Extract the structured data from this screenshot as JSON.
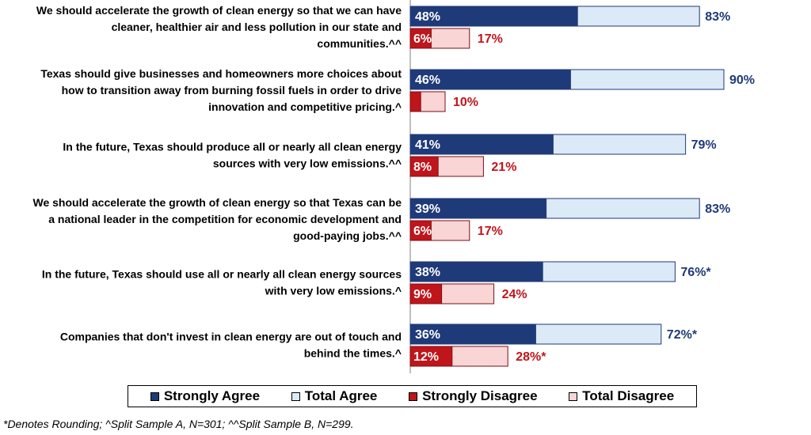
{
  "chart_data": {
    "type": "bar",
    "orientation": "horizontal",
    "xlim": [
      0,
      100
    ],
    "categories": [
      [
        "We should accelerate the growth of clean energy so that we can have",
        "cleaner, healthier air and less pollution in our state and",
        "communities.^^"
      ],
      [
        "Texas should give businesses and homeowners more choices about",
        "how to transition away from burning fossil fuels in order to drive",
        "innovation and competitive pricing.^"
      ],
      [
        "In the future, Texas should produce all or nearly all clean energy",
        "sources with very low emissions.^^"
      ],
      [
        "We should accelerate the growth of clean energy so that Texas can be",
        "a national leader in the competition for economic development and",
        "good-paying jobs.^^"
      ],
      [
        "In the future, Texas should use all or nearly all clean energy sources",
        "with very low emissions.^"
      ],
      [
        "Companies that don't invest in clean energy are out of touch and",
        "behind the times.^"
      ]
    ],
    "series": [
      {
        "name": "Strongly Agree",
        "values": [
          48,
          46,
          41,
          39,
          38,
          36
        ],
        "labels": [
          "48%",
          "46%",
          "41%",
          "39%",
          "38%",
          "36%"
        ],
        "color": "#1f3a78"
      },
      {
        "name": "Total Agree",
        "values": [
          83,
          90,
          79,
          83,
          76,
          72
        ],
        "labels": [
          "83%",
          "90%",
          "79%",
          "83%",
          "76%*",
          "72%*"
        ],
        "color": "#dbeaf6"
      },
      {
        "name": "Strongly Disagree",
        "values": [
          6,
          3,
          8,
          6,
          9,
          12
        ],
        "labels": [
          "6%",
          "",
          "8%",
          "6%",
          "9%",
          "12%"
        ],
        "color": "#c0151b"
      },
      {
        "name": "Total Disagree",
        "values": [
          17,
          10,
          21,
          17,
          24,
          28
        ],
        "labels": [
          "17%",
          "10%",
          "21%",
          "17%",
          "24%",
          "28%*"
        ],
        "color": "#f9d5d5"
      }
    ]
  },
  "legend": [
    {
      "label": "Strongly Agree",
      "color": "#1f3a78"
    },
    {
      "label": "Total Agree",
      "color": "#dbeaf6"
    },
    {
      "label": "Strongly Disagree",
      "color": "#c0151b"
    },
    {
      "label": "Total Disagree",
      "color": "#f9d5d5"
    }
  ],
  "footnote": "*Denotes Rounding; ^Split Sample A, N=301; ^^Split Sample B, N=299."
}
